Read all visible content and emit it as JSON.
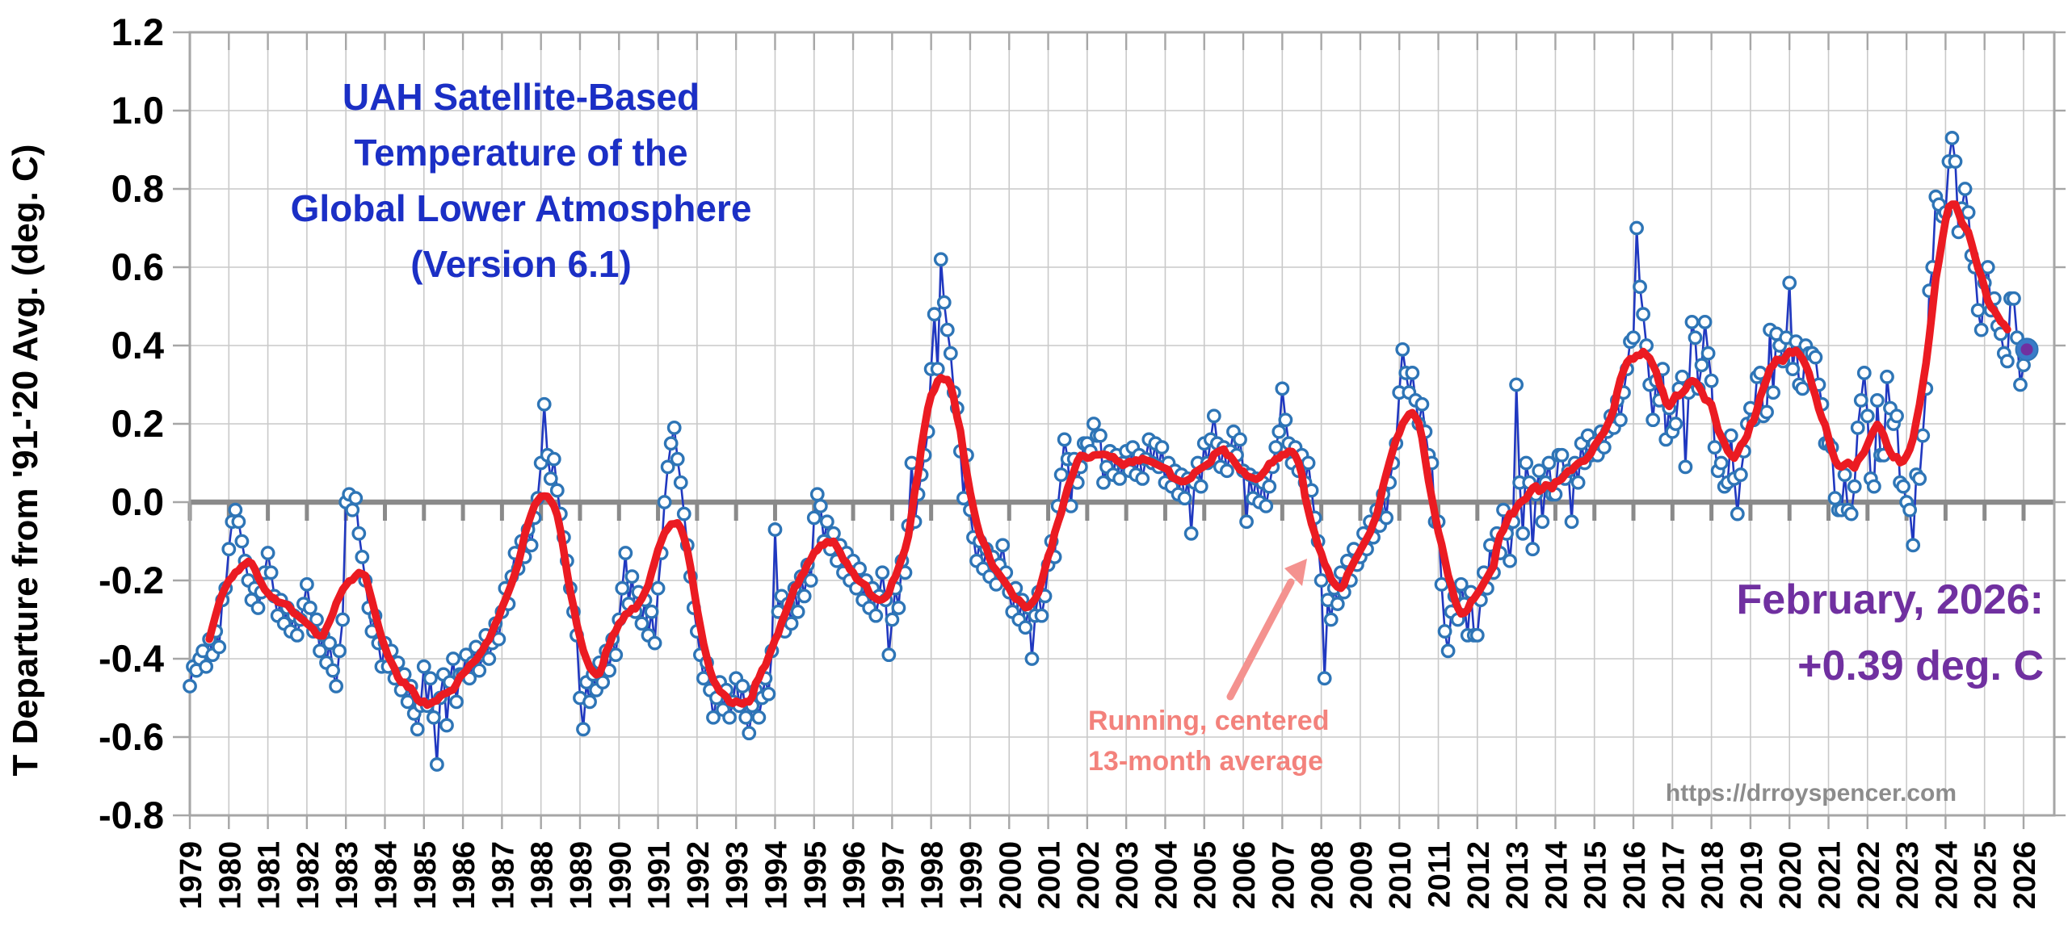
{
  "chart": {
    "title_lines": [
      "UAH Satellite-Based",
      "Temperature of the",
      "Global Lower Atmosphere",
      "(Version 6.1)"
    ],
    "y_axis_title": "T Departure from '91-'20 Avg. (deg. C)",
    "latest_annotation": {
      "line1": "February, 2026:",
      "line2": "+0.39 deg. C"
    },
    "average_annotation": {
      "line1": "Running, centered",
      "line2": "13-month average"
    },
    "watermark": "https://drroyspencer.com"
  },
  "chart_data": {
    "type": "line",
    "title": "UAH Satellite-Based Temperature of the Global Lower Atmosphere (Version 6.1)",
    "ylabel": "T Departure from '91-'20 Avg. (deg. C)",
    "xlabel": "",
    "ylim": [
      -0.8,
      1.2
    ],
    "xlim_years": [
      1979,
      2026.8
    ],
    "grid": true,
    "legend": "none",
    "y_ticks": [
      "1.2",
      "1.0",
      "0.8",
      "0.6",
      "0.4",
      "0.2",
      "0.0",
      "-0.2",
      "-0.4",
      "-0.6",
      "-0.8"
    ],
    "x_ticks": [
      "1979",
      "1980",
      "1981",
      "1982",
      "1983",
      "1984",
      "1985",
      "1986",
      "1987",
      "1988",
      "1989",
      "1990",
      "1991",
      "1992",
      "1993",
      "1994",
      "1995",
      "1996",
      "1997",
      "1998",
      "1999",
      "2000",
      "2001",
      "2002",
      "2003",
      "2004",
      "2005",
      "2006",
      "2007",
      "2008",
      "2009",
      "2010",
      "2011",
      "2012",
      "2013",
      "2014",
      "2015",
      "2016",
      "2017",
      "2018",
      "2019",
      "2020",
      "2021",
      "2022",
      "2023",
      "2024",
      "2025",
      "2026"
    ],
    "series": [
      {
        "name": "Monthly temperature anomaly",
        "style": "line+open-circle-markers",
        "start": "1979-01",
        "end": "2026-02"
      },
      {
        "name": "Running, centered 13-month average",
        "style": "thick-line",
        "window_months": 13,
        "derived_from": "Monthly temperature anomaly"
      }
    ],
    "latest_point": {
      "label": "February, 2026",
      "value": 0.39
    },
    "monthly_values_by_year": {
      "1979": [
        -0.47,
        -0.42,
        -0.43,
        -0.4,
        -0.38,
        -0.42,
        -0.35,
        -0.39,
        -0.33,
        -0.37,
        -0.25,
        -0.22
      ],
      "1980": [
        -0.12,
        -0.05,
        -0.02,
        -0.05,
        -0.1,
        -0.15,
        -0.2,
        -0.25,
        -0.22,
        -0.27,
        -0.23,
        -0.18
      ],
      "1981": [
        -0.13,
        -0.18,
        -0.24,
        -0.29,
        -0.25,
        -0.31,
        -0.27,
        -0.33,
        -0.29,
        -0.34,
        -0.3,
        -0.26
      ],
      "1982": [
        -0.21,
        -0.27,
        -0.33,
        -0.3,
        -0.38,
        -0.34,
        -0.41,
        -0.36,
        -0.43,
        -0.47,
        -0.38,
        -0.3
      ],
      "1983": [
        0.0,
        0.02,
        -0.02,
        0.01,
        -0.08,
        -0.14,
        -0.2,
        -0.27,
        -0.33,
        -0.29,
        -0.36,
        -0.42
      ],
      "1984": [
        -0.36,
        -0.42,
        -0.38,
        -0.45,
        -0.41,
        -0.48,
        -0.44,
        -0.51,
        -0.47,
        -0.54,
        -0.58,
        -0.52
      ],
      "1985": [
        -0.42,
        -0.52,
        -0.45,
        -0.55,
        -0.67,
        -0.5,
        -0.44,
        -0.57,
        -0.46,
        -0.4,
        -0.51,
        -0.44
      ],
      "1986": [
        -0.44,
        -0.39,
        -0.45,
        -0.41,
        -0.37,
        -0.43,
        -0.39,
        -0.34,
        -0.4,
        -0.36,
        -0.31,
        -0.35
      ],
      "1987": [
        -0.28,
        -0.22,
        -0.26,
        -0.19,
        -0.13,
        -0.17,
        -0.1,
        -0.14,
        -0.07,
        -0.11,
        -0.04,
        0.01
      ],
      "1988": [
        0.1,
        0.25,
        0.12,
        0.06,
        0.11,
        0.03,
        -0.03,
        -0.09,
        -0.15,
        -0.22,
        -0.28,
        -0.34
      ],
      "1989": [
        -0.5,
        -0.58,
        -0.46,
        -0.51,
        -0.44,
        -0.48,
        -0.41,
        -0.46,
        -0.38,
        -0.43,
        -0.35,
        -0.39
      ],
      "1990": [
        -0.3,
        -0.22,
        -0.13,
        -0.26,
        -0.19,
        -0.28,
        -0.23,
        -0.31,
        -0.25,
        -0.34,
        -0.28,
        -0.36
      ],
      "1991": [
        -0.22,
        -0.13,
        0.0,
        0.09,
        0.15,
        0.19,
        0.11,
        0.05,
        -0.03,
        -0.11,
        -0.19,
        -0.27
      ],
      "1992": [
        -0.33,
        -0.39,
        -0.45,
        -0.41,
        -0.48,
        -0.55,
        -0.5,
        -0.46,
        -0.53,
        -0.48,
        -0.55,
        -0.51
      ],
      "1993": [
        -0.45,
        -0.52,
        -0.47,
        -0.55,
        -0.59,
        -0.52,
        -0.48,
        -0.55,
        -0.5,
        -0.45,
        -0.49,
        -0.38
      ],
      "1994": [
        -0.07,
        -0.28,
        -0.24,
        -0.33,
        -0.26,
        -0.31,
        -0.22,
        -0.28,
        -0.19,
        -0.24,
        -0.16,
        -0.2
      ],
      "1995": [
        -0.04,
        0.02,
        -0.01,
        -0.1,
        -0.05,
        -0.12,
        -0.08,
        -0.15,
        -0.11,
        -0.18,
        -0.13,
        -0.2
      ],
      "1996": [
        -0.15,
        -0.22,
        -0.17,
        -0.25,
        -0.2,
        -0.27,
        -0.22,
        -0.29,
        -0.24,
        -0.18,
        -0.25,
        -0.39
      ],
      "1997": [
        -0.3,
        -0.22,
        -0.27,
        -0.15,
        -0.18,
        -0.06,
        0.1,
        -0.05,
        0.02,
        0.07,
        0.12,
        0.18
      ],
      "1998": [
        0.34,
        0.48,
        0.34,
        0.62,
        0.51,
        0.44,
        0.38,
        0.28,
        0.24,
        0.13,
        0.01,
        0.12
      ],
      "1999": [
        -0.02,
        -0.09,
        -0.15,
        -0.1,
        -0.17,
        -0.12,
        -0.19,
        -0.14,
        -0.21,
        -0.16,
        -0.11,
        -0.18
      ],
      "2000": [
        -0.23,
        -0.28,
        -0.22,
        -0.3,
        -0.25,
        -0.32,
        -0.27,
        -0.4,
        -0.29,
        -0.23,
        -0.29,
        -0.24
      ],
      "2001": [
        -0.16,
        -0.1,
        -0.14,
        -0.01,
        0.07,
        0.16,
        0.11,
        -0.01,
        0.11,
        0.05,
        0.09,
        0.15
      ],
      "2002": [
        0.15,
        0.13,
        0.2,
        0.17,
        0.17,
        0.05,
        0.09,
        0.13,
        0.07,
        0.12,
        0.06,
        0.1
      ],
      "2003": [
        0.13,
        0.08,
        0.14,
        0.07,
        0.12,
        0.06,
        0.11,
        0.16,
        0.1,
        0.15,
        0.09,
        0.14
      ],
      "2004": [
        0.05,
        0.1,
        0.04,
        0.08,
        0.02,
        0.07,
        0.01,
        0.06,
        -0.08,
        0.05,
        0.1,
        0.04
      ],
      "2005": [
        0.15,
        0.1,
        0.16,
        0.22,
        0.15,
        0.09,
        0.14,
        0.08,
        0.13,
        0.18,
        0.12,
        0.16
      ],
      "2006": [
        0.08,
        -0.05,
        0.07,
        0.01,
        0.06,
        0.0,
        0.05,
        -0.01,
        0.04,
        0.09,
        0.14,
        0.18
      ],
      "2007": [
        0.29,
        0.21,
        0.15,
        0.1,
        0.14,
        0.08,
        0.12,
        0.05,
        0.1,
        0.03,
        -0.04,
        -0.1
      ],
      "2008": [
        -0.2,
        -0.45,
        -0.25,
        -0.3,
        -0.22,
        -0.26,
        -0.18,
        -0.23,
        -0.15,
        -0.2,
        -0.12,
        -0.16
      ],
      "2009": [
        -0.14,
        -0.08,
        -0.12,
        -0.05,
        -0.09,
        -0.02,
        -0.06,
        0.02,
        -0.04,
        0.05,
        0.1,
        0.15
      ],
      "2010": [
        0.28,
        0.39,
        0.33,
        0.28,
        0.33,
        0.26,
        0.2,
        0.25,
        0.18,
        0.12,
        0.1,
        -0.05
      ],
      "2011": [
        -0.05,
        -0.21,
        -0.33,
        -0.38,
        -0.28,
        -0.24,
        -0.3,
        -0.21,
        -0.26,
        -0.34,
        -0.23,
        -0.34
      ],
      "2012": [
        -0.34,
        -0.25,
        -0.18,
        -0.22,
        -0.11,
        -0.18,
        -0.08,
        -0.13,
        -0.02,
        -0.08,
        -0.15,
        -0.05
      ],
      "2013": [
        0.3,
        0.05,
        -0.08,
        0.1,
        0.05,
        -0.12,
        0.02,
        0.08,
        -0.05,
        0.05,
        0.1,
        0.02
      ],
      "2014": [
        0.02,
        0.12,
        0.12,
        0.06,
        0.08,
        -0.05,
        0.1,
        0.05,
        0.15,
        0.1,
        0.17,
        0.12
      ],
      "2015": [
        0.15,
        0.12,
        0.18,
        0.14,
        0.18,
        0.22,
        0.19,
        0.26,
        0.21,
        0.28,
        0.34,
        0.41
      ],
      "2016": [
        0.42,
        0.7,
        0.55,
        0.48,
        0.4,
        0.3,
        0.21,
        0.31,
        0.26,
        0.34,
        0.16,
        0.24
      ],
      "2017": [
        0.18,
        0.2,
        0.29,
        0.32,
        0.09,
        0.28,
        0.46,
        0.42,
        0.29,
        0.35,
        0.46,
        0.38
      ],
      "2018": [
        0.31,
        0.14,
        0.08,
        0.1,
        0.04,
        0.05,
        0.17,
        0.06,
        -0.03,
        0.07,
        0.13,
        0.2
      ],
      "2019": [
        0.24,
        0.21,
        0.32,
        0.33,
        0.22,
        0.23,
        0.44,
        0.28,
        0.43,
        0.4,
        0.36,
        0.42
      ],
      "2020": [
        0.56,
        0.34,
        0.41,
        0.3,
        0.29,
        0.4,
        0.38,
        0.38,
        0.37,
        0.3,
        0.25,
        0.15
      ],
      "2021": [
        0.15,
        0.14,
        0.01,
        -0.02,
        -0.02,
        0.07,
        -0.02,
        -0.03,
        0.04,
        0.19,
        0.26,
        0.33
      ],
      "2022": [
        0.22,
        0.06,
        0.04,
        0.26,
        0.12,
        0.12,
        0.32,
        0.24,
        0.2,
        0.22,
        0.05,
        0.04
      ],
      "2023": [
        0.0,
        -0.02,
        -0.11,
        0.07,
        0.06,
        0.17,
        0.29,
        0.54,
        0.6,
        0.78,
        0.76,
        0.73
      ],
      "2024": [
        0.74,
        0.87,
        0.93,
        0.87,
        0.69,
        0.75,
        0.8,
        0.74,
        0.63,
        0.6,
        0.49,
        0.44
      ],
      "2025": [
        0.56,
        0.6,
        0.49,
        0.52,
        0.45,
        0.43,
        0.38,
        0.36,
        0.52,
        0.52,
        0.42,
        0.3
      ],
      "2026": [
        0.35,
        0.39
      ]
    },
    "style": {
      "monthly_line": "#2038C0",
      "marker_ring": "#2E75B6",
      "marker_fill": "#FFFFFF",
      "average_line": "#EB1B22",
      "latest_marker_outer": "#3A7BC8",
      "latest_marker_inner": "#7030A0",
      "grid": "#C9C9C9",
      "zero_line": "#8A8A8A",
      "border": "#A6A6A6",
      "title_color": "#1B2FC5",
      "latest_text_color": "#7030A0",
      "average_label_color": "#F3827C",
      "arrow_color": "#F4928F",
      "watermark_color": "#8C8C8C",
      "axis_text_color": "#000000"
    }
  }
}
